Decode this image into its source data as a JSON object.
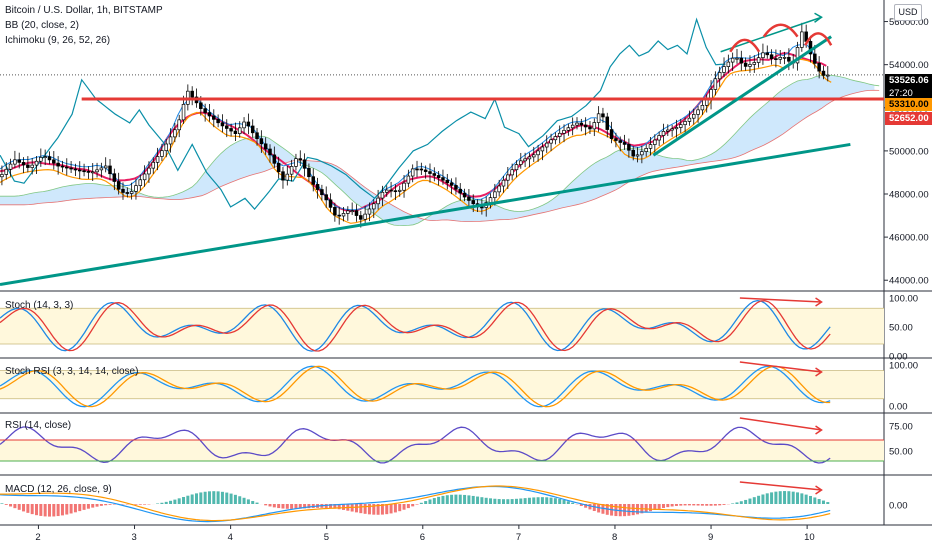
{
  "header": {
    "title": "Bitcoin / U.S. Dollar, 1h, BITSTAMP",
    "bb": "BB (20, close, 2)",
    "ichimoku": "Ichimoku (9, 26, 52, 26)",
    "currency": "USD"
  },
  "price_tags": {
    "last": "53526.06",
    "countdown": "27:20",
    "level_a": "53310.00",
    "level_b": "52652.00"
  },
  "colors": {
    "candle_up": "#ffffff",
    "candle_down": "#000000",
    "bb_basis": "#e91e63",
    "cloud_up": "#bbdefb",
    "cloud_down": "#f8bbd0",
    "trend": "#009688",
    "resistance": "#e53935",
    "tenkan": "#ff9800",
    "kijun": "#1e88e5",
    "chikou": "#0a8fa8"
  },
  "panes": {
    "stoch": {
      "title": "Stoch (14, 3, 3)",
      "ticks": [
        "100.00",
        "50.00",
        "0.00"
      ]
    },
    "stochrsi": {
      "title": "Stoch RSI (3, 3, 14, 14, close)",
      "ticks": [
        "100.00",
        "0.00"
      ]
    },
    "rsi": {
      "title": "RSI (14, close)",
      "ticks": [
        "75.00",
        "50.00"
      ]
    },
    "macd": {
      "title": "MACD (12, 26, close, 9)",
      "ticks": [
        "0.00"
      ]
    }
  },
  "chart_data": {
    "type": "candlestick",
    "title": "Bitcoin / U.S. Dollar, 1h, BITSTAMP",
    "x_tick_labels": [
      "2",
      "3",
      "4",
      "5",
      "6",
      "7",
      "8",
      "9",
      "10"
    ],
    "y_tick_labels": [
      "56000.00",
      "54000.00",
      "52000.00",
      "50000.00",
      "48000.00",
      "46000.00",
      "44000.00"
    ],
    "ylim": [
      43500,
      57000
    ],
    "xlim": [
      1.6,
      10.8
    ],
    "close_path": [
      {
        "x": 1.6,
        "y": 48800
      },
      {
        "x": 1.75,
        "y": 49600
      },
      {
        "x": 1.9,
        "y": 49200
      },
      {
        "x": 2.05,
        "y": 49800
      },
      {
        "x": 2.2,
        "y": 49300
      },
      {
        "x": 2.4,
        "y": 49100
      },
      {
        "x": 2.55,
        "y": 49000
      },
      {
        "x": 2.7,
        "y": 49300
      },
      {
        "x": 2.85,
        "y": 48100
      },
      {
        "x": 2.95,
        "y": 48000
      },
      {
        "x": 3.1,
        "y": 48900
      },
      {
        "x": 3.3,
        "y": 50100
      },
      {
        "x": 3.45,
        "y": 51200
      },
      {
        "x": 3.55,
        "y": 52800
      },
      {
        "x": 3.7,
        "y": 51900
      },
      {
        "x": 3.9,
        "y": 51200
      },
      {
        "x": 4.05,
        "y": 50800
      },
      {
        "x": 4.15,
        "y": 51400
      },
      {
        "x": 4.25,
        "y": 50700
      },
      {
        "x": 4.4,
        "y": 49900
      },
      {
        "x": 4.55,
        "y": 48600
      },
      {
        "x": 4.7,
        "y": 49800
      },
      {
        "x": 4.85,
        "y": 48500
      },
      {
        "x": 5.0,
        "y": 47700
      },
      {
        "x": 5.1,
        "y": 46900
      },
      {
        "x": 5.25,
        "y": 47300
      },
      {
        "x": 5.35,
        "y": 46800
      },
      {
        "x": 5.5,
        "y": 47600
      },
      {
        "x": 5.6,
        "y": 48200
      },
      {
        "x": 5.75,
        "y": 48100
      },
      {
        "x": 5.9,
        "y": 49200
      },
      {
        "x": 6.0,
        "y": 49100
      },
      {
        "x": 6.15,
        "y": 48800
      },
      {
        "x": 6.3,
        "y": 48400
      },
      {
        "x": 6.45,
        "y": 47800
      },
      {
        "x": 6.6,
        "y": 47300
      },
      {
        "x": 6.7,
        "y": 47800
      },
      {
        "x": 6.85,
        "y": 48700
      },
      {
        "x": 7.0,
        "y": 49500
      },
      {
        "x": 7.15,
        "y": 49800
      },
      {
        "x": 7.3,
        "y": 50400
      },
      {
        "x": 7.45,
        "y": 50900
      },
      {
        "x": 7.6,
        "y": 51300
      },
      {
        "x": 7.75,
        "y": 51000
      },
      {
        "x": 7.85,
        "y": 51900
      },
      {
        "x": 7.95,
        "y": 50600
      },
      {
        "x": 8.1,
        "y": 50300
      },
      {
        "x": 8.2,
        "y": 49700
      },
      {
        "x": 8.35,
        "y": 50200
      },
      {
        "x": 8.5,
        "y": 50900
      },
      {
        "x": 8.65,
        "y": 51100
      },
      {
        "x": 8.8,
        "y": 51600
      },
      {
        "x": 8.95,
        "y": 52300
      },
      {
        "x": 9.05,
        "y": 53400
      },
      {
        "x": 9.15,
        "y": 54000
      },
      {
        "x": 9.25,
        "y": 54400
      },
      {
        "x": 9.35,
        "y": 53900
      },
      {
        "x": 9.45,
        "y": 54100
      },
      {
        "x": 9.55,
        "y": 54600
      },
      {
        "x": 9.65,
        "y": 54200
      },
      {
        "x": 9.75,
        "y": 54400
      },
      {
        "x": 9.85,
        "y": 54000
      },
      {
        "x": 9.95,
        "y": 55600
      },
      {
        "x": 10.05,
        "y": 54300
      },
      {
        "x": 10.15,
        "y": 53500
      },
      {
        "x": 10.25,
        "y": 53526
      }
    ],
    "resistance_level": 53310,
    "support_level": 52652,
    "last_price": 53526.06
  }
}
